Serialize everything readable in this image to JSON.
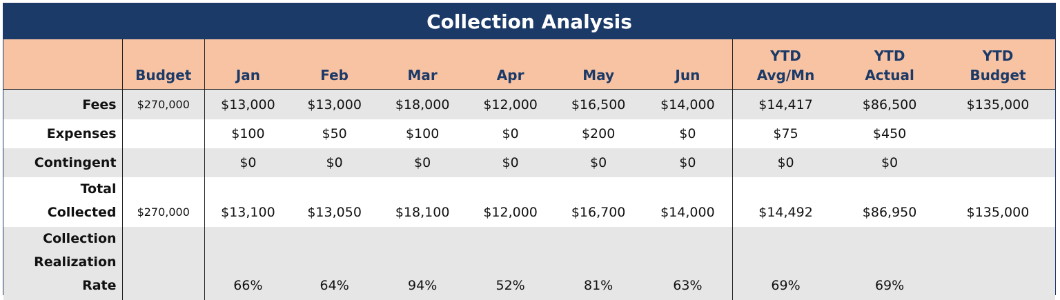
{
  "title": "Collection Analysis",
  "headers": {
    "label": "",
    "budget": "Budget",
    "months": [
      "Jan",
      "Feb",
      "Mar",
      "Apr",
      "May",
      "Jun"
    ],
    "ytd_avg": [
      "YTD",
      "Avg/Mn"
    ],
    "ytd_actual": [
      "YTD",
      "Actual"
    ],
    "ytd_budget": [
      "YTD",
      "Budget"
    ]
  },
  "rows": {
    "fees": {
      "label": "Fees",
      "budget": "$270,000",
      "months": [
        "$13,000",
        "$13,000",
        "$18,000",
        "$12,000",
        "$16,500",
        "$14,000"
      ],
      "ytd_avg": "$14,417",
      "ytd_actual": "$86,500",
      "ytd_budget": "$135,000"
    },
    "expenses": {
      "label": "Expenses",
      "budget": "",
      "months": [
        "$100",
        "$50",
        "$100",
        "$0",
        "$200",
        "$0"
      ],
      "ytd_avg": "$75",
      "ytd_actual": "$450",
      "ytd_budget": ""
    },
    "contingent": {
      "label": "Contingent",
      "budget": "",
      "months": [
        "$0",
        "$0",
        "$0",
        "$0",
        "$0",
        "$0"
      ],
      "ytd_avg": "$0",
      "ytd_actual": "$0",
      "ytd_budget": ""
    },
    "total": {
      "label_lines": [
        "Total",
        "Collected"
      ],
      "budget": "$270,000",
      "months": [
        "$13,100",
        "$13,050",
        "$18,100",
        "$12,000",
        "$16,700",
        "$14,000"
      ],
      "ytd_avg": "$14,492",
      "ytd_actual": "$86,950",
      "ytd_budget": "$135,000"
    },
    "rate": {
      "label_lines": [
        "Collection",
        "Realization",
        "Rate"
      ],
      "budget": "",
      "months": [
        "66%",
        "64%",
        "94%",
        "52%",
        "81%",
        "63%"
      ],
      "ytd_avg": "69%",
      "ytd_actual": "69%",
      "ytd_budget": ""
    }
  }
}
